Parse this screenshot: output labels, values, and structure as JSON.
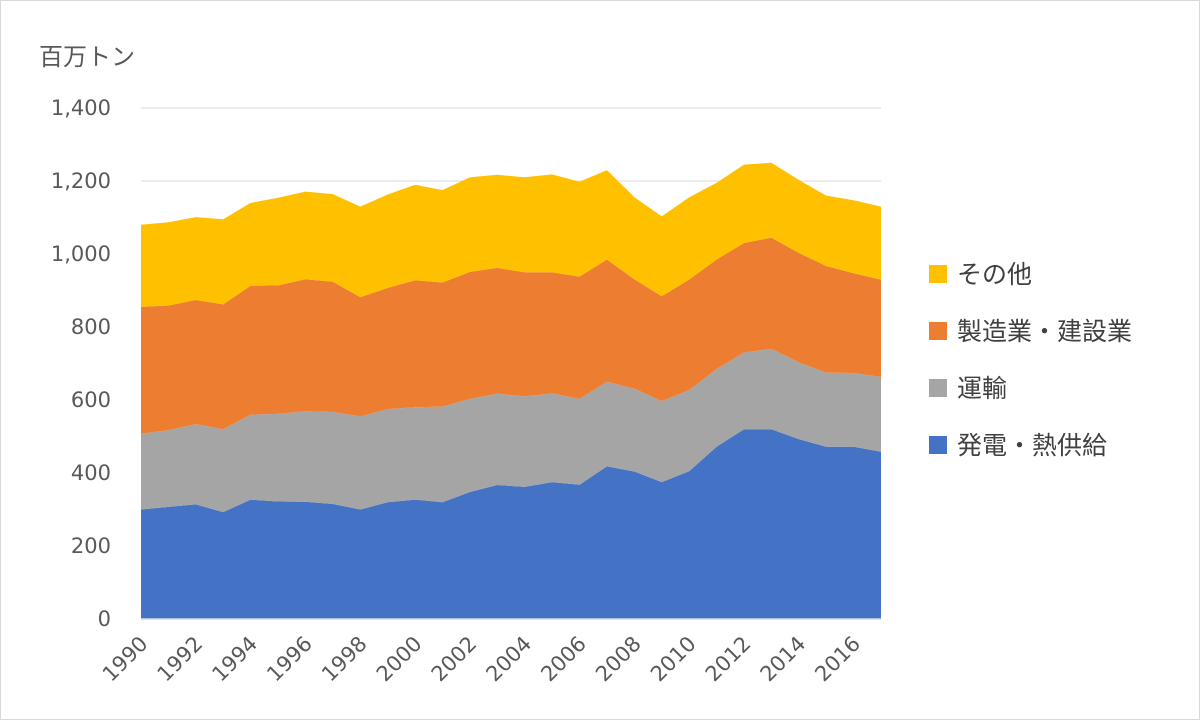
{
  "chart_data": {
    "type": "area",
    "stacked": true,
    "unit_label": "百万トン",
    "x": [
      1990,
      1991,
      1992,
      1993,
      1994,
      1995,
      1996,
      1997,
      1998,
      1999,
      2000,
      2001,
      2002,
      2003,
      2004,
      2005,
      2006,
      2007,
      2008,
      2009,
      2010,
      2011,
      2012,
      2013,
      2014,
      2015,
      2016,
      2017
    ],
    "x_tick_labels": [
      "1990",
      "1992",
      "1994",
      "1996",
      "1998",
      "2000",
      "2002",
      "2004",
      "2006",
      "2008",
      "2010",
      "2012",
      "2014",
      "2016"
    ],
    "ylim": [
      0,
      1400
    ],
    "y_tick_labels": [
      "0",
      "200",
      "400",
      "600",
      "800",
      "1,000",
      "1,200",
      "1,400"
    ],
    "grid": true,
    "legend_position": "right",
    "series": [
      {
        "name": "発電・熱供給",
        "color": "#4472C4",
        "values": [
          300,
          307,
          314,
          293,
          327,
          322,
          321,
          315,
          300,
          320,
          327,
          320,
          348,
          367,
          362,
          375,
          368,
          418,
          404,
          375,
          405,
          472,
          520,
          520,
          493,
          472,
          472,
          458
        ]
      },
      {
        "name": "運輸",
        "color": "#A5A5A5",
        "values": [
          208,
          210,
          220,
          227,
          233,
          240,
          248,
          252,
          255,
          255,
          253,
          262,
          255,
          250,
          248,
          243,
          235,
          232,
          227,
          222,
          222,
          213,
          210,
          220,
          210,
          203,
          202,
          205
        ]
      },
      {
        "name": "製造業・建設業",
        "color": "#ED7D31",
        "values": [
          347,
          342,
          340,
          342,
          353,
          352,
          362,
          357,
          327,
          332,
          348,
          340,
          348,
          345,
          340,
          332,
          335,
          335,
          300,
          287,
          303,
          300,
          300,
          305,
          300,
          292,
          273,
          267
        ]
      },
      {
        "name": "その他",
        "color": "#FFC000",
        "values": [
          225,
          228,
          227,
          233,
          227,
          240,
          240,
          240,
          248,
          256,
          262,
          253,
          259,
          255,
          260,
          268,
          260,
          245,
          225,
          219,
          225,
          210,
          215,
          205,
          200,
          193,
          200,
          200
        ]
      }
    ]
  }
}
